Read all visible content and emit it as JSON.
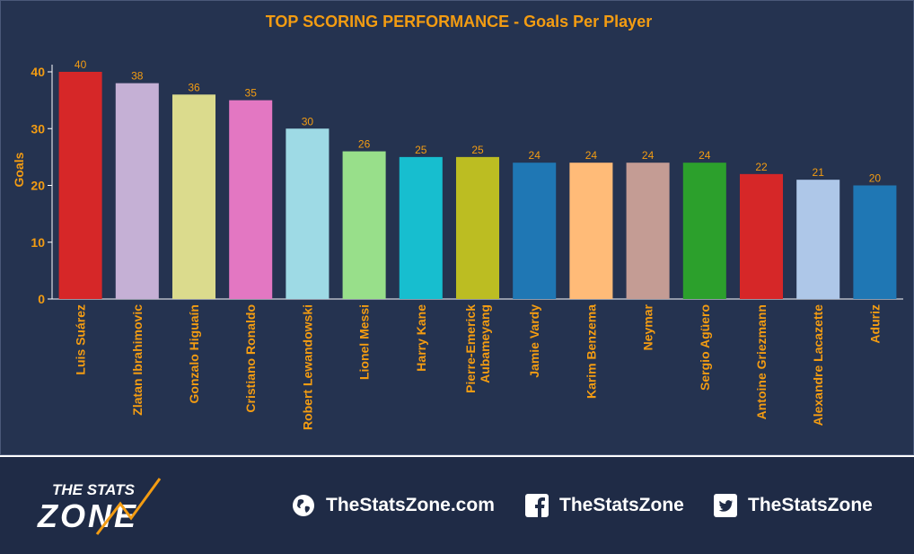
{
  "chart_data": {
    "type": "bar",
    "title": "TOP SCORING PERFORMANCE - Goals Per Player",
    "ylabel": "Goals",
    "xlabel": "",
    "ylim": [
      0,
      40
    ],
    "yticks": [
      0,
      10,
      20,
      30,
      40
    ],
    "grid": false,
    "categories": [
      "Luis Suárez",
      "Zlatan Ibrahimovic",
      "Gonzalo Higuaín",
      "Cristiano Ronaldo",
      "Robert Lewandowski",
      "Lionel Messi",
      "Harry Kane",
      "Pierre-Emerick Aubameyang",
      "Jamie Vardy",
      "Karim Benzema",
      "Neymar",
      "Sergio Agüero",
      "Antoine Griezmann",
      "Alexandre Lacazette",
      "Aduriz"
    ],
    "category_lines": [
      [
        "Luis Suárez"
      ],
      [
        "Zlatan Ibrahimovic"
      ],
      [
        "Gonzalo Higuaín"
      ],
      [
        "Cristiano Ronaldo"
      ],
      [
        "Robert Lewandowski"
      ],
      [
        "Lionel Messi"
      ],
      [
        "Harry Kane"
      ],
      [
        "Pierre-Emerick",
        "Aubameyang"
      ],
      [
        "Jamie Vardy"
      ],
      [
        "Karim Benzema"
      ],
      [
        "Neymar"
      ],
      [
        "Sergio Agüero"
      ],
      [
        "Antoine Griezmann"
      ],
      [
        "Alexandre Lacazette"
      ],
      [
        "Aduriz"
      ]
    ],
    "values": [
      40,
      38,
      36,
      35,
      30,
      26,
      25,
      25,
      24,
      24,
      24,
      24,
      22,
      21,
      20
    ],
    "colors": [
      "#d62728",
      "#c5b0d5",
      "#dbdb8d",
      "#e377c2",
      "#9edae5",
      "#98df8a",
      "#17becf",
      "#bcbd22",
      "#1f77b4",
      "#ffbb78",
      "#c49c94",
      "#2ca02c",
      "#d62728",
      "#aec7e8",
      "#1f77b4"
    ],
    "label_color": "#f39c12"
  },
  "footer": {
    "logo_line1": "THE STATS",
    "logo_line2": "ZONE",
    "website": "TheStatsZone.com",
    "facebook": "TheStatsZone",
    "twitter": "TheStatsZone"
  }
}
